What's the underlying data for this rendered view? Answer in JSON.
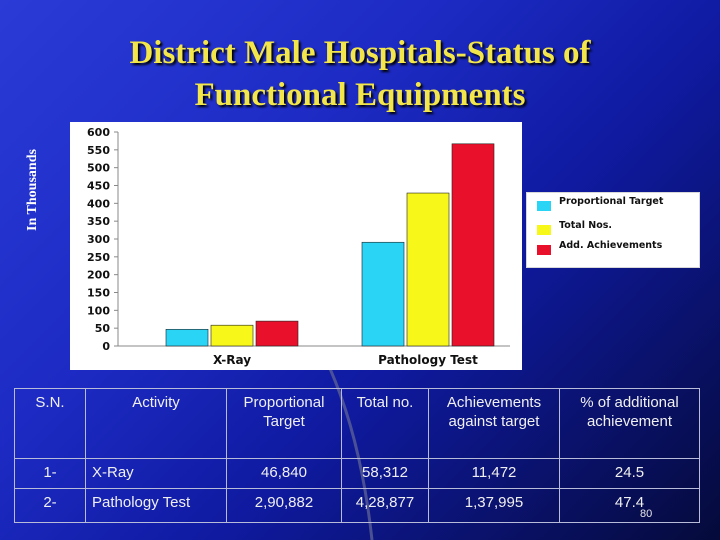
{
  "title_line1": "District Male Hospitals-Status of",
  "title_line2": "Functional Equipments",
  "side_label": "In Thousands",
  "page_number": "80",
  "colors": {
    "title": "#f3e64a",
    "proportional_target": "#2ad4f5",
    "total_nos": "#f7f71a",
    "add_achievements": "#e8102a"
  },
  "chart_data": {
    "type": "bar",
    "categories": [
      "X-Ray",
      "Pathology Test"
    ],
    "series": [
      {
        "name": "Proportional Target",
        "values": [
          46.84,
          290.882
        ]
      },
      {
        "name": "Total Nos.",
        "values": [
          58.312,
          428.877
        ]
      },
      {
        "name": "Add. Achievements",
        "values": [
          69.784,
          566.872
        ]
      }
    ],
    "yticks": [
      0,
      50,
      100,
      150,
      200,
      250,
      300,
      350,
      400,
      450,
      500,
      550,
      600
    ],
    "ylim": [
      0,
      600
    ],
    "xlabel": "",
    "ylabel": "",
    "legend_position": "right",
    "grid": false
  },
  "table": {
    "headers": [
      "S.N.",
      "Activity",
      "Proportional Target",
      "Total no.",
      "Achievements against target",
      "% of additional achievement"
    ],
    "rows": [
      [
        "1-",
        "X-Ray",
        "46,840",
        "58,312",
        "11,472",
        "24.5"
      ],
      [
        "2-",
        "Pathology Test",
        "2,90,882",
        "4,28,877",
        "1,37,995",
        "47.4"
      ]
    ]
  }
}
